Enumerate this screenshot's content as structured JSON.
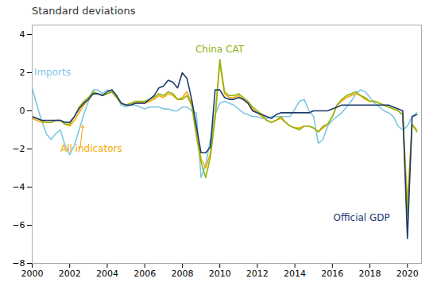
{
  "chart_data": {
    "type": "line",
    "title": "Standard deviations",
    "grid": false,
    "xlim": [
      2000,
      2020.75
    ],
    "ylim": [
      -8,
      4.5
    ],
    "xticks": [
      2000,
      2002,
      2004,
      2006,
      2008,
      2010,
      2012,
      2014,
      2016,
      2018,
      2020
    ],
    "yticks": [
      -8,
      -6,
      -4,
      -2,
      0,
      2,
      4
    ],
    "x": [
      2000.0,
      2000.25,
      2000.5,
      2000.75,
      2001.0,
      2001.25,
      2001.5,
      2001.75,
      2002.0,
      2002.25,
      2002.5,
      2002.75,
      2003.0,
      2003.25,
      2003.5,
      2003.75,
      2004.0,
      2004.25,
      2004.5,
      2004.75,
      2005.0,
      2005.25,
      2005.5,
      2005.75,
      2006.0,
      2006.25,
      2006.5,
      2006.75,
      2007.0,
      2007.25,
      2007.5,
      2007.75,
      2008.0,
      2008.25,
      2008.5,
      2008.75,
      2009.0,
      2009.25,
      2009.5,
      2009.75,
      2010.0,
      2010.25,
      2010.5,
      2010.75,
      2011.0,
      2011.25,
      2011.5,
      2011.75,
      2012.0,
      2012.25,
      2012.5,
      2012.75,
      2013.0,
      2013.25,
      2013.5,
      2013.75,
      2014.0,
      2014.25,
      2014.5,
      2014.75,
      2015.0,
      2015.25,
      2015.5,
      2015.75,
      2016.0,
      2016.25,
      2016.5,
      2016.75,
      2017.0,
      2017.25,
      2017.5,
      2017.75,
      2018.0,
      2018.25,
      2018.5,
      2018.75,
      2019.0,
      2019.25,
      2019.5,
      2019.75,
      2020.0,
      2020.25,
      2020.5
    ],
    "series": [
      {
        "name": "Imports",
        "color": "#7ec8e3",
        "values": [
          1.2,
          0.3,
          -0.5,
          -1.2,
          -1.5,
          -1.2,
          -1.0,
          -1.8,
          -2.3,
          -1.8,
          -1.0,
          -0.2,
          0.5,
          1.1,
          1.1,
          0.9,
          1.1,
          1.0,
          0.7,
          0.3,
          0.2,
          0.3,
          0.3,
          0.2,
          0.1,
          0.2,
          0.2,
          0.2,
          0.1,
          0.1,
          0.0,
          0.0,
          0.2,
          0.2,
          0.0,
          -0.1,
          -3.5,
          -2.8,
          -1.5,
          -0.2,
          0.4,
          0.5,
          0.4,
          0.3,
          0.1,
          -0.1,
          -0.2,
          -0.3,
          -0.3,
          -0.4,
          -0.4,
          -0.3,
          -0.3,
          -0.3,
          -0.3,
          -0.3,
          0.1,
          0.5,
          0.6,
          0.0,
          -0.3,
          -1.7,
          -1.5,
          -0.8,
          -0.5,
          -0.3,
          -0.1,
          0.2,
          0.5,
          0.9,
          1.1,
          1.0,
          0.7,
          0.4,
          0.2,
          0.0,
          -0.1,
          -0.3,
          -0.8,
          -1.0,
          -0.8,
          -0.3,
          -0.1
        ]
      },
      {
        "name": "All indicators",
        "color": "#f5a800",
        "values": [
          -0.4,
          -0.5,
          -0.6,
          -0.6,
          -0.6,
          -0.5,
          -0.5,
          -0.7,
          -0.8,
          -0.5,
          -0.1,
          0.3,
          0.6,
          0.9,
          0.9,
          0.8,
          0.9,
          1.0,
          0.7,
          0.4,
          0.3,
          0.4,
          0.4,
          0.5,
          0.4,
          0.5,
          0.6,
          0.8,
          0.7,
          0.9,
          0.8,
          0.6,
          0.7,
          1.0,
          0.4,
          -1.0,
          -2.5,
          -3.0,
          -2.2,
          -0.3,
          2.5,
          0.9,
          0.7,
          0.7,
          0.8,
          0.6,
          0.4,
          0.1,
          -0.1,
          -0.3,
          -0.5,
          -0.6,
          -0.5,
          -0.4,
          -0.6,
          -0.8,
          -0.9,
          -0.9,
          -0.8,
          -0.8,
          -0.9,
          -1.1,
          -0.9,
          -0.7,
          -0.3,
          0.3,
          0.5,
          0.7,
          0.8,
          0.9,
          0.8,
          0.6,
          0.5,
          0.5,
          0.4,
          0.3,
          0.2,
          0.1,
          0.0,
          -0.2,
          -4.8,
          -0.7,
          -1.0
        ]
      },
      {
        "name": "China CAT",
        "color": "#8db510",
        "values": [
          -0.3,
          -0.4,
          -0.5,
          -0.6,
          -0.6,
          -0.5,
          -0.5,
          -0.7,
          -0.7,
          -0.3,
          0.2,
          0.5,
          0.7,
          1.0,
          0.9,
          0.8,
          0.9,
          1.0,
          0.7,
          0.4,
          0.3,
          0.4,
          0.5,
          0.5,
          0.5,
          0.6,
          0.7,
          0.9,
          0.8,
          1.0,
          0.9,
          0.6,
          0.6,
          0.8,
          0.3,
          -1.3,
          -2.7,
          -3.5,
          -2.4,
          -0.4,
          2.7,
          1.0,
          0.8,
          0.8,
          0.9,
          0.7,
          0.5,
          0.2,
          0.0,
          -0.2,
          -0.5,
          -0.6,
          -0.5,
          -0.3,
          -0.6,
          -0.8,
          -0.9,
          -1.0,
          -0.8,
          -0.8,
          -0.9,
          -1.1,
          -0.8,
          -0.7,
          -0.3,
          0.3,
          0.6,
          0.8,
          0.9,
          1.0,
          0.8,
          0.7,
          0.5,
          0.5,
          0.4,
          0.3,
          0.2,
          0.1,
          0.0,
          -0.2,
          -5.5,
          -0.7,
          -1.1
        ]
      },
      {
        "name": "Official GDP",
        "color": "#1e3a6e",
        "values": [
          -0.3,
          -0.4,
          -0.5,
          -0.5,
          -0.5,
          -0.5,
          -0.5,
          -0.6,
          -0.6,
          -0.3,
          0.1,
          0.4,
          0.6,
          0.9,
          0.9,
          0.8,
          1.0,
          1.1,
          0.8,
          0.4,
          0.3,
          0.3,
          0.4,
          0.4,
          0.4,
          0.6,
          0.8,
          1.2,
          1.3,
          1.6,
          1.5,
          1.2,
          2.0,
          1.7,
          0.6,
          -0.8,
          -2.2,
          -2.2,
          -1.9,
          1.1,
          1.1,
          0.7,
          0.6,
          0.6,
          0.7,
          0.6,
          0.4,
          0.0,
          -0.1,
          -0.2,
          -0.3,
          -0.4,
          -0.2,
          -0.1,
          -0.1,
          -0.1,
          -0.1,
          -0.1,
          -0.1,
          -0.1,
          0.0,
          0.0,
          0.0,
          0.0,
          0.1,
          0.2,
          0.3,
          0.3,
          0.3,
          0.3,
          0.3,
          0.3,
          0.3,
          0.3,
          0.3,
          0.3,
          0.3,
          0.2,
          0.1,
          0.0,
          -6.7,
          -0.3,
          -0.2
        ]
      }
    ],
    "annotations": [
      {
        "text": "China CAT",
        "x": 2008.7,
        "y": 3.05,
        "color": "#8db510"
      },
      {
        "text": "Imports",
        "x": 2000.1,
        "y": 1.85,
        "color": "#7ec8e3"
      },
      {
        "text": "All indicators",
        "x": 2001.5,
        "y": -2.15,
        "color": "#f5a800",
        "arrow": {
          "x_start": 2002.55,
          "y_start": -2.0,
          "x_end": 2002.7,
          "y_end": -0.75
        }
      },
      {
        "text": "Official GDP",
        "x": 2016.05,
        "y": -5.75,
        "color": "#1e3a6e"
      }
    ]
  }
}
